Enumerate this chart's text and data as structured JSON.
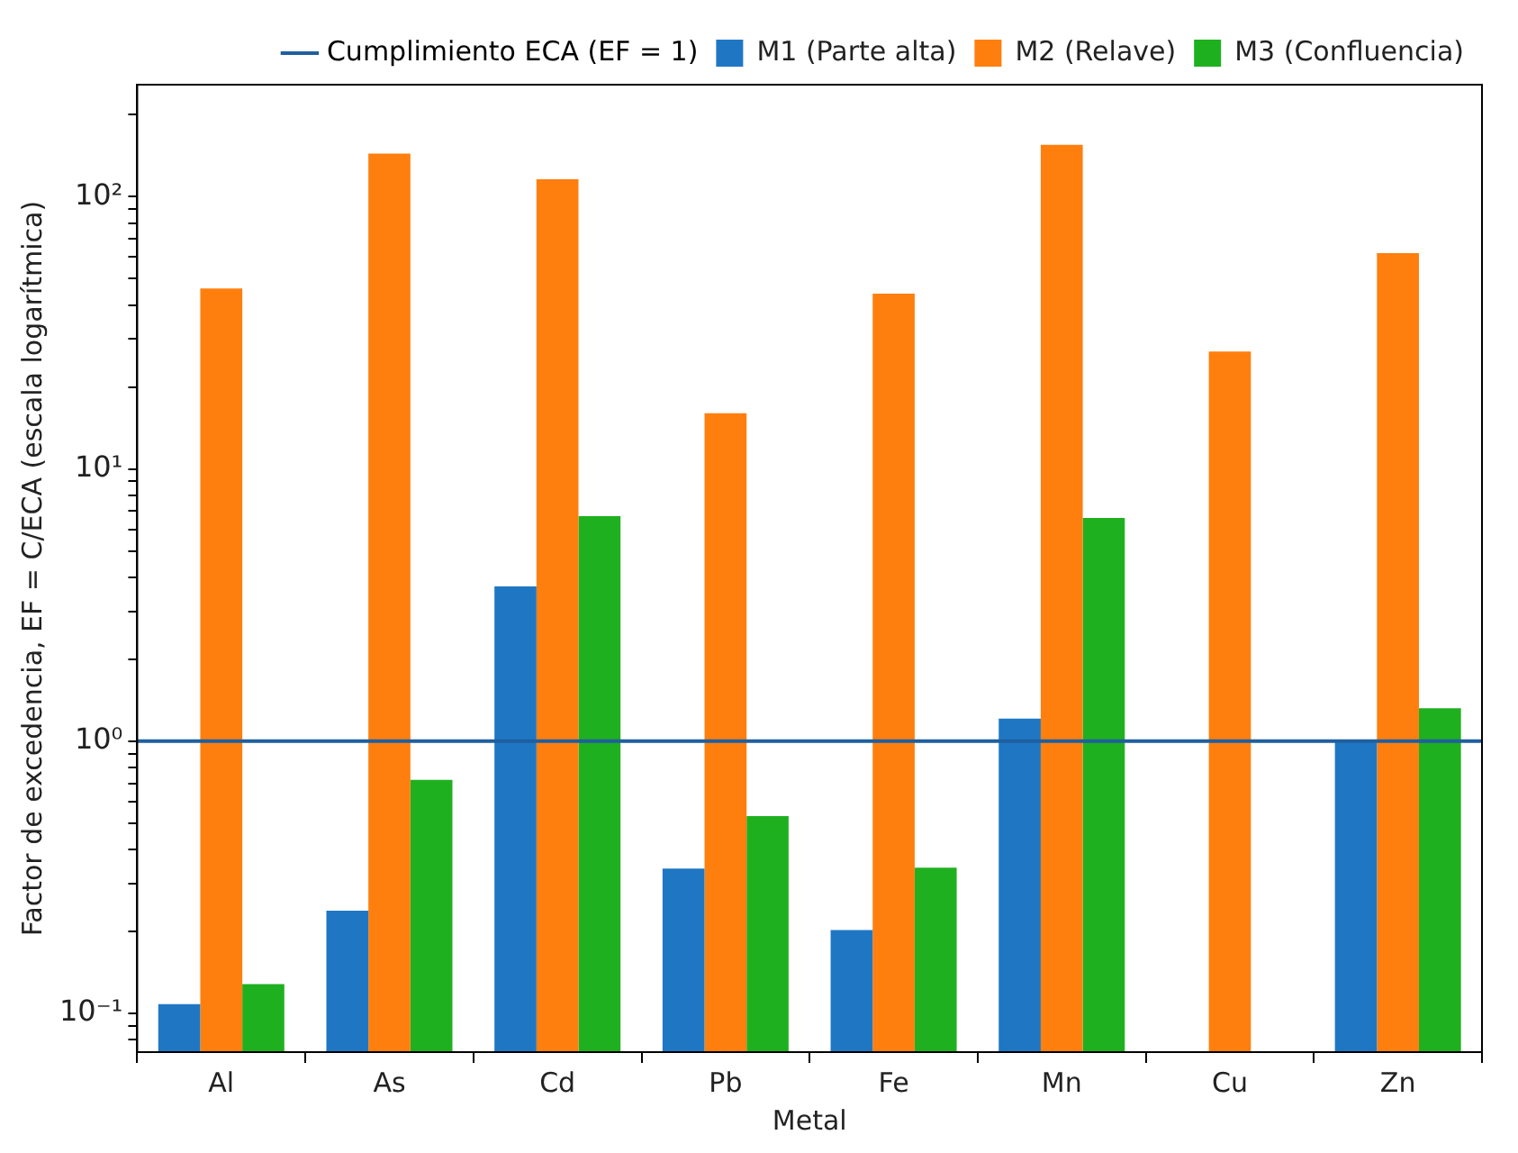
{
  "chart_data": {
    "type": "bar",
    "xlabel": "Metal",
    "ylabel": "Factor de excedencia, EF = C/ECA (escala logarítmica)",
    "categories": [
      "Al",
      "As",
      "Cd",
      "Pb",
      "Fe",
      "Mn",
      "Cu",
      "Zn"
    ],
    "series": [
      {
        "name": "M1 (Parte alta)",
        "color": "#1f77c4",
        "values": [
          0.108,
          0.238,
          3.7,
          0.34,
          0.202,
          1.21,
          null,
          1.0
        ]
      },
      {
        "name": "M2 (Relave)",
        "color": "#ff7f0e",
        "values": [
          46,
          144,
          116,
          16,
          44,
          155,
          27,
          62
        ]
      },
      {
        "name": "M3 (Confluencia)",
        "color": "#1fb01f",
        "values": [
          0.128,
          0.72,
          6.7,
          0.53,
          0.343,
          6.6,
          null,
          1.32
        ]
      }
    ],
    "log": "y",
    "ylim": [
      0.072,
      258
    ],
    "yticks": [
      {
        "value": 0.08,
        "label": null
      },
      {
        "value": 0.09,
        "label": null
      },
      {
        "value": 0.1,
        "label": "10⁻¹"
      },
      {
        "value": 0.2,
        "label": null
      },
      {
        "value": 0.3,
        "label": null
      },
      {
        "value": 0.4,
        "label": null
      },
      {
        "value": 0.5,
        "label": null
      },
      {
        "value": 0.6,
        "label": null
      },
      {
        "value": 0.7,
        "label": null
      },
      {
        "value": 0.8,
        "label": null
      },
      {
        "value": 0.9,
        "label": null
      },
      {
        "value": 1,
        "label": "10⁰"
      },
      {
        "value": 2,
        "label": null
      },
      {
        "value": 3,
        "label": null
      },
      {
        "value": 4,
        "label": null
      },
      {
        "value": 5,
        "label": null
      },
      {
        "value": 6,
        "label": null
      },
      {
        "value": 7,
        "label": null
      },
      {
        "value": 8,
        "label": null
      },
      {
        "value": 9,
        "label": null
      },
      {
        "value": 10,
        "label": "10¹"
      },
      {
        "value": 20,
        "label": null
      },
      {
        "value": 30,
        "label": null
      },
      {
        "value": 40,
        "label": null
      },
      {
        "value": 50,
        "label": null
      },
      {
        "value": 60,
        "label": null
      },
      {
        "value": 70,
        "label": null
      },
      {
        "value": 80,
        "label": null
      },
      {
        "value": 90,
        "label": null
      },
      {
        "value": 100,
        "label": "10²"
      },
      {
        "value": 200,
        "label": null
      }
    ],
    "ref_lines": [
      {
        "axis": "y",
        "value": 1,
        "label": "Cumplimiento ECA (EF = 1)",
        "color": "#1f5f9f",
        "line_style": "solid"
      }
    ],
    "grid": false,
    "legend": "top"
  }
}
